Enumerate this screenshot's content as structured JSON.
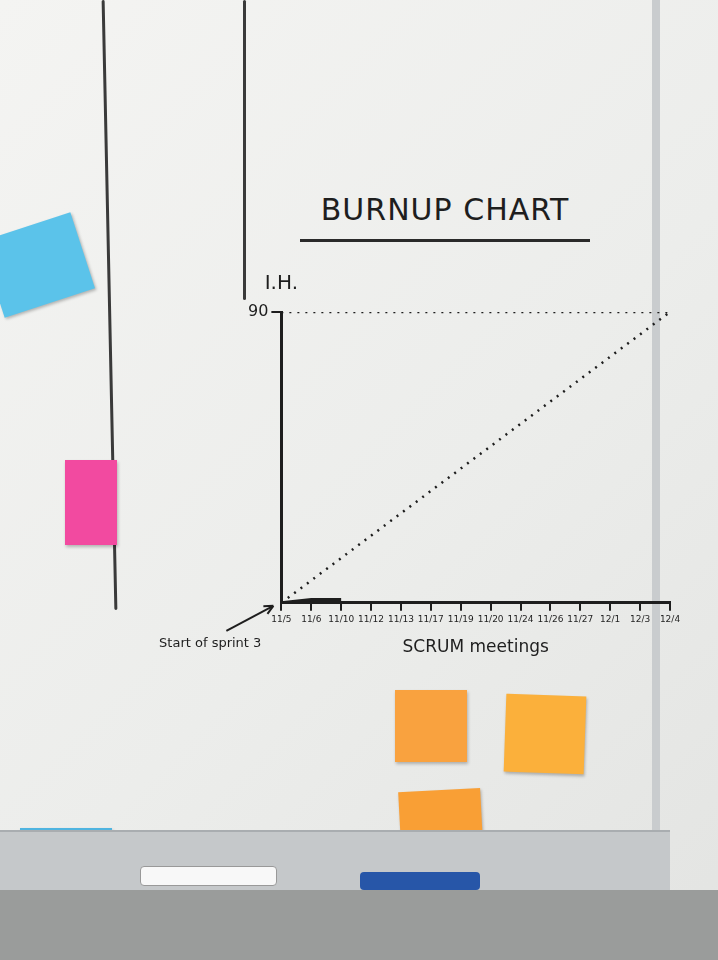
{
  "chart_data": {
    "type": "line",
    "title": "BURNUP CHART",
    "y_label": "I.H.",
    "x_label": "SCRUM meetings",
    "annotation": "Start of sprint 3",
    "categories": [
      "11/5",
      "11/6",
      "11/10",
      "11/12",
      "11/13",
      "11/17",
      "11/19",
      "11/20",
      "11/24",
      "11/26",
      "11/27",
      "12/1",
      "12/3",
      "12/4"
    ],
    "series": [
      {
        "color": "#1e1e1e",
        "line_style": "dotted",
        "marker": "none",
        "values": [
          90,
          null,
          null,
          null,
          null,
          null,
          null,
          null,
          null,
          null,
          null,
          null,
          null,
          90
        ]
      },
      {
        "color": "#1e1e1e",
        "line_style": "dotted",
        "marker": "none",
        "values": [
          0,
          null,
          null,
          null,
          null,
          null,
          null,
          null,
          null,
          null,
          null,
          null,
          null,
          90
        ]
      },
      {
        "color": "#1e1e1e",
        "line_style": "solid",
        "marker": "none",
        "values": [
          0,
          1,
          1,
          null,
          null,
          null,
          null,
          null,
          null,
          null,
          null,
          null,
          null,
          null
        ]
      }
    ],
    "ylim": [
      0,
      90
    ],
    "yticks": [
      90
    ],
    "grid": false
  }
}
